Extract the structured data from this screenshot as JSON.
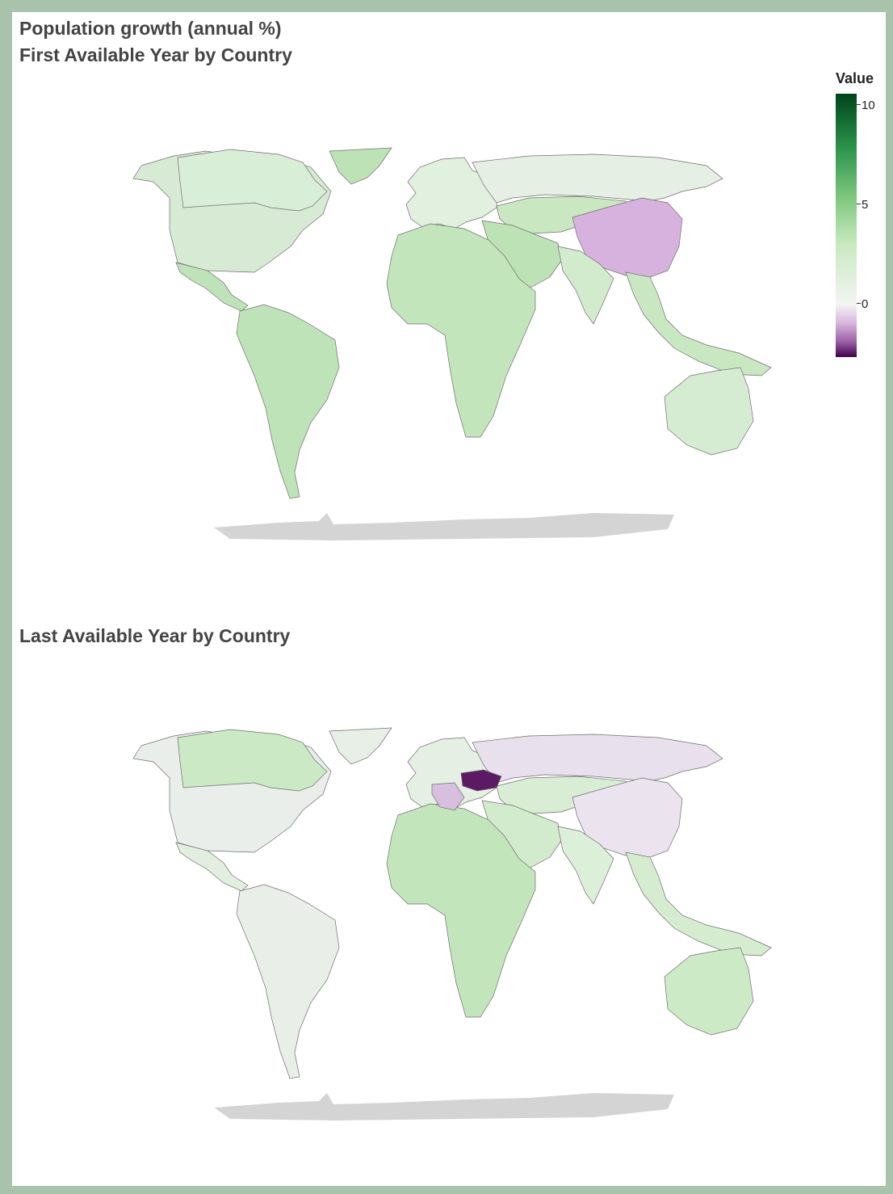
{
  "titles": {
    "main": "Population growth (annual %)",
    "first": "First Available Year by Country",
    "last": "Last Available Year by Country"
  },
  "legend": {
    "title": "Value",
    "ticks": [
      "10",
      "5",
      "0"
    ],
    "colors": {
      "max": "#00441b",
      "high": "#7fc97f",
      "zero": "#f4f4f4",
      "min": "#40004b"
    }
  },
  "maps": {
    "first": {
      "americas_north": "#d7ebd4",
      "canada": "#d9eed6",
      "greenland": "#bde2b6",
      "mexico_central": "#bfe3b8",
      "south_america": "#bfe3b8",
      "europe": "#e2f0df",
      "russia": "#e6efe4",
      "central_asia": "#c9e8c2",
      "china": "#d7b2de",
      "india": "#d3ebcd",
      "se_asia": "#c9e8c2",
      "middle_east": "#bde2b6",
      "africa": "#c3e5bc",
      "australia": "#d6ecd2"
    },
    "last": {
      "americas_north": "#eaeeea",
      "canada": "#cbe9c4",
      "greenland": "#e8efe6",
      "mexico_central": "#e2eedf",
      "south_america": "#e9eee8",
      "europe": "#e6efe4",
      "russia": "#e8e0ec",
      "ukraine": "#5c1a64",
      "balkans": "#d8bfe0",
      "central_asia": "#d9edd5",
      "china": "#ebe4ee",
      "india": "#dcefd8",
      "se_asia": "#d6ecd1",
      "middle_east": "#d3ebcd",
      "africa": "#c3e5bc",
      "australia": "#cdeac6"
    }
  }
}
